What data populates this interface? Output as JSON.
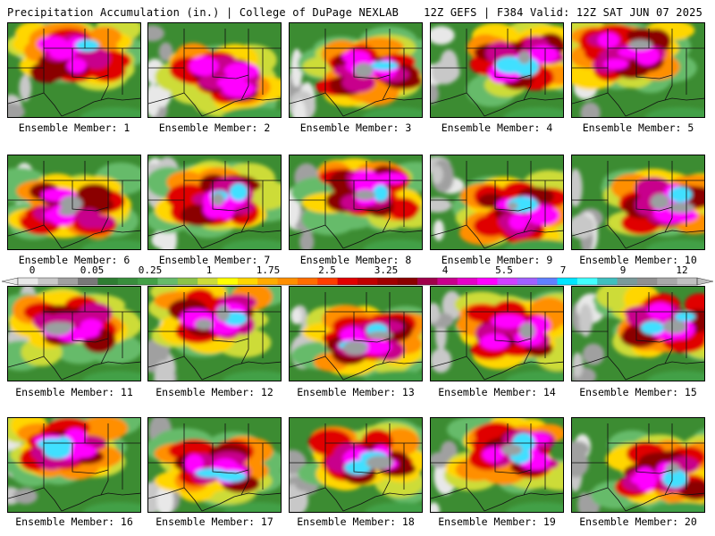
{
  "header": {
    "title": "Precipitation Accumulation (in.) | College of DuPage NEXLAB",
    "run_info": "12Z GEFS | F384 Valid: 12Z SAT JUN 07 2025"
  },
  "colorbar": {
    "tick_labels": [
      "0",
      "0.05",
      "0.25",
      "1",
      "1.75",
      "2.5",
      "3.25",
      "4",
      "5.5",
      "7",
      "9",
      "12"
    ],
    "colors": [
      "#e8e8e8",
      "#c8c8c8",
      "#a0a0a0",
      "#787878",
      "#2e7d32",
      "#388e3c",
      "#43a047",
      "#66bb6a",
      "#8bc34a",
      "#cddc39",
      "#ffff00",
      "#ffd600",
      "#ffab00",
      "#ff8f00",
      "#ff6d00",
      "#ff3d00",
      "#e00000",
      "#c00000",
      "#a00000",
      "#8b0000",
      "#a0004a",
      "#c8008c",
      "#e600c8",
      "#ff00ff",
      "#d040ff",
      "#a060ff",
      "#6080ff",
      "#00e5ff",
      "#40ffff",
      "#3fbfbf",
      "#7a9a9a",
      "#909090",
      "#a8a8a8",
      "#c0c0c0"
    ]
  },
  "panels": [
    {
      "label": "Ensemble Member: 1"
    },
    {
      "label": "Ensemble Member: 2"
    },
    {
      "label": "Ensemble Member: 3"
    },
    {
      "label": "Ensemble Member: 4"
    },
    {
      "label": "Ensemble Member: 5"
    },
    {
      "label": "Ensemble Member: 6"
    },
    {
      "label": "Ensemble Member: 7"
    },
    {
      "label": "Ensemble Member: 8"
    },
    {
      "label": "Ensemble Member: 9"
    },
    {
      "label": "Ensemble Member: 10"
    },
    {
      "label": "Ensemble Member: 11"
    },
    {
      "label": "Ensemble Member: 12"
    },
    {
      "label": "Ensemble Member: 13"
    },
    {
      "label": "Ensemble Member: 14"
    },
    {
      "label": "Ensemble Member: 15"
    },
    {
      "label": "Ensemble Member: 16"
    },
    {
      "label": "Ensemble Member: 17"
    },
    {
      "label": "Ensemble Member: 18"
    },
    {
      "label": "Ensemble Member: 19"
    },
    {
      "label": "Ensemble Member: 20"
    }
  ]
}
